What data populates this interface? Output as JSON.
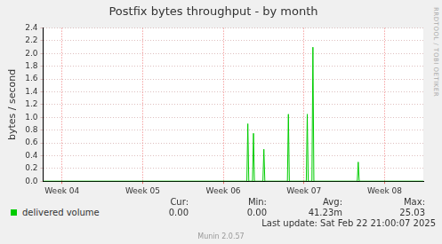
{
  "chart_data": {
    "type": "line",
    "title": "Postfix bytes throughput - by month",
    "y_label": "bytes / second",
    "grid": true,
    "tick_labels": true,
    "xlim": [
      3.766,
      8.48
    ],
    "xticks": [
      {
        "value": 4,
        "label": "Week 04"
      },
      {
        "value": 5,
        "label": "Week 05"
      },
      {
        "value": 6,
        "label": "Week 06"
      },
      {
        "value": 7,
        "label": "Week 07"
      },
      {
        "value": 8,
        "label": "Week 08"
      }
    ],
    "ylim": [
      0,
      2.4
    ],
    "yticks": [
      {
        "value": 0,
        "label": "0.0"
      },
      0.2,
      0.4,
      0.6,
      0.8,
      {
        "value": 1,
        "label": "1.0"
      },
      1.2,
      1.4,
      1.6,
      1.8,
      {
        "value": 2,
        "label": "2.0"
      },
      2.2,
      2.4
    ],
    "series": [
      {
        "name": "delivered volume",
        "color": "#00cc00",
        "x": [
          3.766,
          6.292,
          6.304,
          6.316,
          6.362,
          6.374,
          6.386,
          6.491,
          6.503,
          6.515,
          6.795,
          6.807,
          6.819,
          7.029,
          7.041,
          7.053,
          7.099,
          7.111,
          7.123,
          7.661,
          7.673,
          7.685,
          8.48
        ],
        "values": [
          0,
          0,
          0.9,
          0,
          0,
          0.75,
          0,
          0,
          0.5,
          0,
          0,
          1.05,
          0,
          0,
          1.05,
          0,
          0,
          2.1,
          0,
          0,
          0.3,
          0,
          0
        ]
      }
    ]
  },
  "summary": {
    "headers": [
      "Cur:",
      "Min:",
      "Avg:",
      "Max:"
    ],
    "values": [
      "0.00",
      "0.00",
      "41.23m",
      "25.03"
    ]
  },
  "last_update": "Last update: Sat Feb 22 21:00:07 2025",
  "generator": "Munin 2.0.57",
  "side_text": "RRDTOOL / TOBI OETIKER"
}
